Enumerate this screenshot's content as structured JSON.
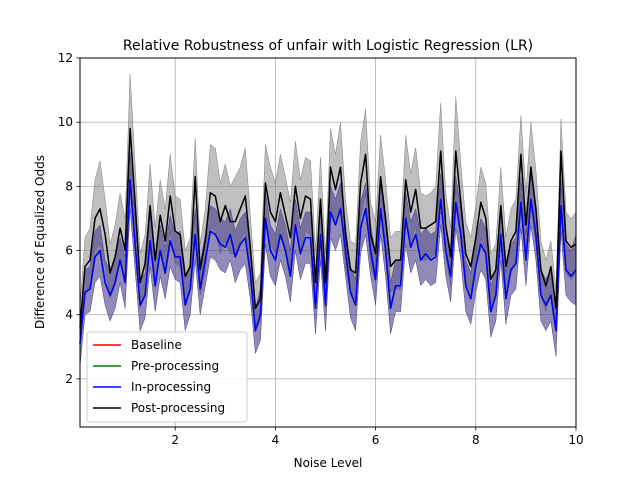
{
  "chart_data": {
    "type": "line",
    "title": "Relative Robustness of unfair with Logistic Regression (LR)",
    "xlabel": "Noise Level",
    "ylabel": "Difference of Equalized Odds",
    "xlim": [
      0.1,
      10
    ],
    "ylim": [
      0.5,
      12
    ],
    "xticks": [
      2,
      4,
      6,
      8,
      10
    ],
    "yticks": [
      2,
      4,
      6,
      8,
      10,
      12
    ],
    "grid": true,
    "legend": "lower-left",
    "x": [
      0.1,
      0.2,
      0.3,
      0.4,
      0.5,
      0.6,
      0.7,
      0.8,
      0.9,
      1.0,
      1.1,
      1.2,
      1.3,
      1.4,
      1.5,
      1.6,
      1.7,
      1.8,
      1.9,
      2.0,
      2.1,
      2.2,
      2.3,
      2.4,
      2.5,
      2.6,
      2.7,
      2.8,
      2.9,
      3.0,
      3.1,
      3.2,
      3.3,
      3.4,
      3.5,
      3.6,
      3.7,
      3.8,
      3.9,
      4.0,
      4.1,
      4.2,
      4.3,
      4.4,
      4.5,
      4.6,
      4.7,
      4.8,
      4.9,
      5.0,
      5.1,
      5.2,
      5.3,
      5.4,
      5.5,
      5.6,
      5.7,
      5.8,
      5.9,
      6.0,
      6.1,
      6.2,
      6.3,
      6.4,
      6.5,
      6.6,
      6.7,
      6.8,
      6.9,
      7.0,
      7.1,
      7.2,
      7.3,
      7.4,
      7.5,
      7.6,
      7.7,
      7.8,
      7.9,
      8.0,
      8.1,
      8.2,
      8.3,
      8.4,
      8.5,
      8.6,
      8.7,
      8.8,
      8.9,
      9.0,
      9.1,
      9.2,
      9.3,
      9.4,
      9.5,
      9.6,
      9.7,
      9.8,
      9.9,
      10.0
    ],
    "series": [
      {
        "name": "Baseline",
        "color": "#ff0000",
        "values": [
          3.1,
          4.7,
          4.8,
          5.8,
          6.0,
          5.0,
          4.6,
          5.0,
          5.7,
          5.0,
          8.2,
          6.2,
          4.3,
          4.6,
          6.3,
          4.9,
          6.0,
          5.3,
          6.3,
          5.8,
          5.8,
          4.3,
          4.8,
          6.5,
          4.8,
          5.7,
          6.6,
          6.5,
          6.2,
          6.1,
          6.5,
          5.8,
          6.2,
          6.4,
          5.3,
          3.5,
          4.0,
          7.0,
          6.0,
          5.7,
          6.5,
          6.0,
          5.2,
          6.8,
          5.9,
          6.4,
          6.4,
          4.2,
          6.5,
          4.3,
          7.2,
          6.8,
          7.3,
          6.0,
          4.7,
          4.3,
          6.7,
          7.3,
          6.0,
          5.1,
          7.3,
          6.0,
          4.2,
          4.9,
          4.9,
          7.0,
          6.1,
          6.5,
          5.7,
          5.9,
          5.7,
          5.8,
          7.6,
          6.0,
          5.2,
          7.5,
          6.5,
          4.9,
          4.5,
          5.5,
          6.2,
          5.9,
          4.1,
          4.6,
          6.5,
          4.5,
          5.4,
          5.6,
          7.5,
          5.7,
          7.6,
          6.5,
          4.6,
          4.3,
          4.6,
          3.5,
          7.4,
          5.4,
          5.2,
          5.4
        ]
      },
      {
        "name": "Pre-processing",
        "color": "#008000",
        "values": [
          3.1,
          4.7,
          4.8,
          5.8,
          6.0,
          5.0,
          4.6,
          5.0,
          5.7,
          5.0,
          8.2,
          6.2,
          4.3,
          4.6,
          6.3,
          4.9,
          6.0,
          5.3,
          6.3,
          5.8,
          5.8,
          4.3,
          4.8,
          6.5,
          4.8,
          5.7,
          6.6,
          6.5,
          6.2,
          6.1,
          6.5,
          5.8,
          6.2,
          6.4,
          5.3,
          3.5,
          4.0,
          7.0,
          6.0,
          5.7,
          6.5,
          6.0,
          5.2,
          6.8,
          5.9,
          6.4,
          6.4,
          4.2,
          6.5,
          4.3,
          7.2,
          6.8,
          7.3,
          6.0,
          4.7,
          4.3,
          6.7,
          7.3,
          6.0,
          5.1,
          7.3,
          6.0,
          4.2,
          4.9,
          4.9,
          7.0,
          6.1,
          6.5,
          5.7,
          5.9,
          5.7,
          5.8,
          7.6,
          6.0,
          5.2,
          7.5,
          6.5,
          4.9,
          4.5,
          5.5,
          6.2,
          5.9,
          4.1,
          4.6,
          6.5,
          4.5,
          5.4,
          5.6,
          7.5,
          5.7,
          7.6,
          6.5,
          4.6,
          4.3,
          4.6,
          3.5,
          7.4,
          5.4,
          5.2,
          5.4
        ]
      },
      {
        "name": "In-processing",
        "color": "#0000ff",
        "band_color": "#483d8b",
        "values": [
          3.1,
          4.7,
          4.8,
          5.8,
          6.0,
          5.0,
          4.6,
          5.0,
          5.7,
          5.0,
          8.2,
          6.2,
          4.3,
          4.6,
          6.3,
          4.9,
          6.0,
          5.3,
          6.3,
          5.8,
          5.8,
          4.3,
          4.8,
          6.5,
          4.8,
          5.7,
          6.6,
          6.5,
          6.2,
          6.1,
          6.5,
          5.8,
          6.2,
          6.4,
          5.3,
          3.5,
          4.0,
          7.0,
          6.0,
          5.7,
          6.5,
          6.0,
          5.2,
          6.8,
          5.9,
          6.4,
          6.4,
          4.2,
          6.5,
          4.3,
          7.2,
          6.8,
          7.3,
          6.0,
          4.7,
          4.3,
          6.7,
          7.3,
          6.0,
          5.1,
          7.3,
          6.0,
          4.2,
          4.9,
          4.9,
          7.0,
          6.1,
          6.5,
          5.7,
          5.9,
          5.7,
          5.8,
          7.6,
          6.0,
          5.2,
          7.5,
          6.5,
          4.9,
          4.5,
          5.5,
          6.2,
          5.9,
          4.1,
          4.6,
          6.5,
          4.5,
          5.4,
          5.6,
          7.5,
          5.7,
          7.6,
          6.5,
          4.6,
          4.3,
          4.6,
          3.5,
          7.4,
          5.4,
          5.2,
          5.4
        ],
        "lower": [
          2.4,
          4.0,
          4.1,
          5.0,
          5.2,
          4.3,
          3.8,
          4.2,
          5.0,
          4.2,
          7.3,
          5.4,
          3.5,
          3.9,
          5.5,
          4.1,
          5.2,
          4.5,
          5.5,
          5.1,
          5.0,
          3.5,
          4.0,
          5.7,
          4.0,
          4.9,
          5.8,
          5.7,
          5.4,
          5.3,
          5.7,
          5.0,
          5.4,
          5.6,
          4.5,
          2.8,
          3.2,
          6.2,
          5.2,
          4.9,
          5.7,
          5.2,
          4.4,
          6.0,
          5.1,
          5.6,
          5.6,
          3.4,
          5.7,
          3.5,
          6.4,
          6.0,
          6.5,
          5.2,
          3.9,
          3.5,
          5.9,
          6.5,
          5.2,
          4.3,
          6.5,
          5.2,
          3.4,
          4.1,
          4.1,
          6.2,
          5.3,
          5.7,
          4.9,
          5.1,
          4.9,
          5.0,
          6.8,
          5.2,
          4.4,
          6.7,
          5.7,
          4.1,
          3.7,
          4.7,
          5.4,
          5.1,
          3.3,
          3.8,
          5.7,
          3.7,
          4.6,
          4.8,
          6.7,
          4.9,
          6.8,
          5.7,
          3.8,
          3.5,
          3.8,
          2.7,
          6.6,
          4.6,
          4.4,
          4.3
        ]
      },
      {
        "name": "Post-processing",
        "color": "#000000",
        "band_color": "#808080",
        "values": [
          3.6,
          5.5,
          5.7,
          7.0,
          7.3,
          6.5,
          5.3,
          5.8,
          6.7,
          6.0,
          9.8,
          7.5,
          5.0,
          5.6,
          7.4,
          5.7,
          7.1,
          6.3,
          7.7,
          6.6,
          6.5,
          5.2,
          5.5,
          8.3,
          5.4,
          6.3,
          7.8,
          7.7,
          6.9,
          7.4,
          6.9,
          6.9,
          7.3,
          7.7,
          6.1,
          4.2,
          4.5,
          8.1,
          7.2,
          6.9,
          7.8,
          7.1,
          6.4,
          8.0,
          7.0,
          7.7,
          7.6,
          5.0,
          7.6,
          5.0,
          8.6,
          7.9,
          8.6,
          6.5,
          5.4,
          5.3,
          8.1,
          9.0,
          6.5,
          5.9,
          8.3,
          7.0,
          5.5,
          5.7,
          5.7,
          8.2,
          7.2,
          7.9,
          6.7,
          6.7,
          6.8,
          6.9,
          9.1,
          6.8,
          5.8,
          9.1,
          7.5,
          5.9,
          5.5,
          6.4,
          7.5,
          7.0,
          5.1,
          5.4,
          7.4,
          5.5,
          6.3,
          6.6,
          9.0,
          6.8,
          8.6,
          7.3,
          5.4,
          4.9,
          5.5,
          4.2,
          9.1,
          6.3,
          6.1,
          6.2
        ],
        "lower": [
          3.0,
          4.6,
          4.8,
          6.0,
          6.2,
          5.5,
          4.5,
          4.9,
          5.7,
          5.1,
          8.5,
          6.4,
          4.2,
          4.7,
          6.3,
          4.8,
          6.0,
          5.3,
          6.6,
          5.6,
          5.5,
          4.4,
          4.7,
          7.1,
          4.6,
          5.4,
          6.7,
          6.6,
          5.9,
          6.3,
          5.9,
          5.9,
          6.3,
          6.6,
          5.2,
          3.5,
          3.8,
          7.0,
          6.2,
          5.9,
          6.7,
          6.1,
          5.4,
          6.8,
          6.0,
          6.6,
          6.5,
          4.2,
          6.5,
          4.2,
          7.4,
          6.8,
          7.4,
          5.5,
          4.6,
          4.5,
          7.0,
          7.8,
          5.5,
          5.0,
          7.1,
          6.0,
          4.7,
          4.8,
          4.8,
          7.0,
          6.2,
          6.8,
          5.7,
          5.7,
          5.8,
          5.9,
          7.9,
          5.8,
          4.9,
          7.9,
          6.4,
          5.0,
          4.7,
          5.4,
          6.4,
          6.0,
          4.3,
          4.6,
          6.3,
          4.6,
          5.3,
          5.6,
          7.8,
          5.8,
          7.4,
          6.2,
          4.6,
          4.1,
          4.7,
          3.6,
          7.9,
          5.3,
          5.1,
          5.3
        ],
        "upper": [
          4.3,
          6.4,
          6.7,
          8.2,
          8.8,
          7.6,
          6.2,
          6.8,
          7.8,
          7.0,
          11.5,
          8.7,
          5.9,
          6.5,
          8.7,
          6.7,
          8.2,
          7.3,
          9.0,
          7.7,
          7.6,
          6.0,
          6.4,
          9.5,
          6.2,
          7.3,
          9.3,
          9.2,
          8.1,
          8.7,
          8.0,
          8.3,
          8.6,
          9.2,
          7.1,
          5.0,
          5.3,
          9.3,
          8.6,
          8.1,
          9.0,
          8.3,
          7.5,
          9.4,
          8.2,
          8.9,
          8.8,
          6.0,
          8.9,
          5.9,
          9.8,
          9.0,
          10.0,
          7.6,
          6.3,
          6.2,
          9.4,
          10.4,
          7.5,
          6.9,
          9.6,
          8.2,
          6.4,
          6.6,
          6.6,
          9.6,
          8.4,
          9.2,
          7.8,
          7.7,
          7.8,
          8.0,
          10.6,
          7.8,
          6.7,
          10.8,
          8.7,
          6.9,
          6.4,
          7.4,
          8.6,
          8.1,
          5.9,
          6.2,
          8.6,
          6.4,
          7.3,
          7.6,
          10.2,
          7.8,
          10.0,
          8.5,
          6.3,
          5.7,
          6.3,
          4.8,
          10.1,
          7.2,
          7.0,
          7.2
        ]
      }
    ]
  }
}
